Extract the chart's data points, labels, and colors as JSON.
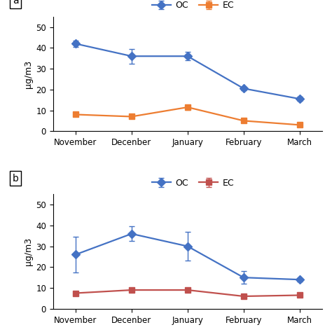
{
  "months": [
    "November",
    "Decenber",
    "January",
    "February",
    "March"
  ],
  "panel_a": {
    "OC_values": [
      42,
      36,
      36,
      20.5,
      15.5
    ],
    "OC_errors": [
      1.5,
      3.5,
      2.0,
      0.8,
      1.0
    ],
    "EC_values": [
      8,
      7,
      11.5,
      5,
      3
    ],
    "EC_errors": [
      0.5,
      0.5,
      1.2,
      0.5,
      0.3
    ],
    "OC_color": "#4472C4",
    "EC_color": "#ED7D31",
    "ylabel": "μg/m3",
    "ylim": [
      0,
      55
    ],
    "yticks": [
      0,
      10,
      20,
      30,
      40,
      50
    ],
    "label": "a"
  },
  "panel_b": {
    "OC_values": [
      26,
      36,
      30,
      15,
      14
    ],
    "OC_errors": [
      8.5,
      3.5,
      7.0,
      3.0,
      0.8
    ],
    "EC_values": [
      7.5,
      9,
      9,
      6,
      6.5
    ],
    "EC_errors": [
      0.5,
      0.5,
      0.5,
      0.8,
      0.5
    ],
    "OC_color": "#4472C4",
    "EC_color": "#C0504D",
    "ylabel": "μg/m3",
    "ylim": [
      0,
      55
    ],
    "yticks": [
      0,
      10,
      20,
      30,
      40,
      50
    ],
    "label": "b"
  },
  "legend_OC": "OC",
  "legend_EC": "EC",
  "marker_OC": "D",
  "marker_EC": "s",
  "markersize": 6,
  "linewidth": 1.6,
  "capsize": 3,
  "elinewidth": 1.0,
  "background_color": "#ffffff",
  "legend_fontsize": 9,
  "tick_fontsize": 8.5,
  "label_fontsize": 9
}
